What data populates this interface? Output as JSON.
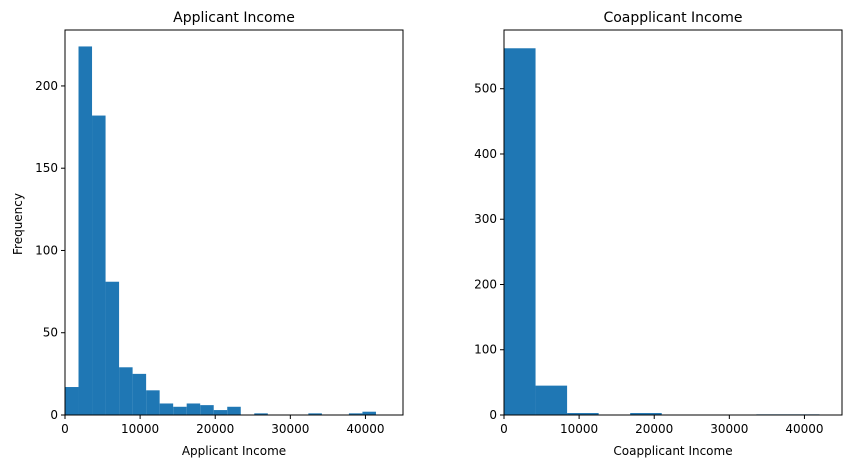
{
  "colors": {
    "bar": "#1f77b4",
    "axis": "#000000",
    "background": "#ffffff"
  },
  "chart_data": [
    {
      "type": "bar",
      "histogram": true,
      "title": "Applicant Income",
      "xlabel": "Applicant Income",
      "ylabel": "Frequency",
      "xlim": [
        0,
        45000
      ],
      "ylim": [
        0,
        234
      ],
      "xticks": [
        0,
        10000,
        20000,
        30000,
        40000
      ],
      "yticks": [
        0,
        50,
        100,
        150,
        200
      ],
      "grid": false,
      "bin_edges": [
        0,
        1800,
        3600,
        5400,
        7200,
        9000,
        10800,
        12600,
        14400,
        16200,
        18000,
        19800,
        21600,
        23400,
        25200,
        27000,
        28800,
        30600,
        32400,
        34200,
        36000,
        37800,
        39600,
        41400
      ],
      "values": [
        17,
        224,
        182,
        81,
        29,
        25,
        15,
        7,
        5,
        7,
        6,
        3,
        5,
        0,
        1,
        0,
        0,
        0,
        1,
        0,
        0,
        1,
        2
      ]
    },
    {
      "type": "bar",
      "histogram": true,
      "title": "Coapplicant Income",
      "xlabel": "Coapplicant Income",
      "ylabel": "",
      "xlim": [
        0,
        45000
      ],
      "ylim": [
        0,
        590
      ],
      "xticks": [
        0,
        10000,
        20000,
        30000,
        40000
      ],
      "yticks": [
        0,
        100,
        200,
        300,
        400,
        500
      ],
      "grid": false,
      "bin_edges": [
        0,
        4200,
        8400,
        12600,
        16800,
        21000,
        25200,
        29400,
        33600,
        37800,
        42000
      ],
      "values": [
        562,
        45,
        3,
        0,
        3,
        0,
        0,
        0,
        1,
        1
      ]
    }
  ]
}
